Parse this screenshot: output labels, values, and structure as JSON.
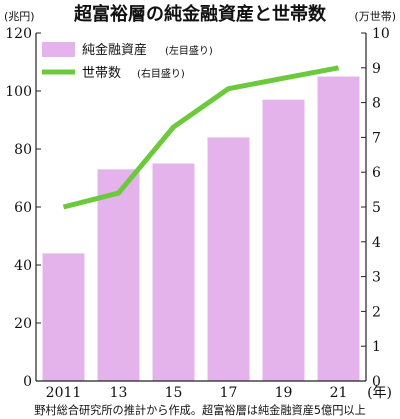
{
  "title": "超富裕層の純金融資産と世帯数",
  "left_unit": "(兆円)",
  "right_unit": "(万世帯)",
  "x_unit": "(年)",
  "source": "野村総合研究所の推計から作成。超富裕層は純金融資産5億円以上",
  "colors": {
    "bar": "#e4b3ec",
    "line": "#6cc93c",
    "axis": "#222222"
  },
  "chart_data": {
    "type": "bar",
    "categories": [
      "2011",
      "13",
      "15",
      "17",
      "19",
      "21"
    ],
    "series": [
      {
        "name": "純金融資産",
        "legend_label": "純金融資産",
        "legend_note": "(左目盛り)",
        "type": "bar",
        "axis": "left",
        "values": [
          44,
          73,
          75,
          84,
          97,
          105
        ]
      },
      {
        "name": "世帯数",
        "legend_label": "世帯数",
        "legend_note": "(右目盛り)",
        "type": "line",
        "axis": "right",
        "values": [
          5.0,
          5.4,
          7.3,
          8.4,
          8.7,
          9.0
        ]
      }
    ],
    "left_axis": {
      "ylim": [
        0,
        120
      ],
      "ticks": [
        "0",
        "20",
        "40",
        "60",
        "80",
        "100",
        "120"
      ]
    },
    "right_axis": {
      "ylim": [
        0,
        10
      ],
      "ticks": [
        "0",
        "1",
        "2",
        "3",
        "4",
        "5",
        "6",
        "7",
        "8",
        "9",
        "10"
      ]
    },
    "x_tick_labels": [
      "2011",
      "13",
      "15",
      "17",
      "19",
      "21"
    ],
    "grid": false,
    "legend_position": "top-left"
  }
}
